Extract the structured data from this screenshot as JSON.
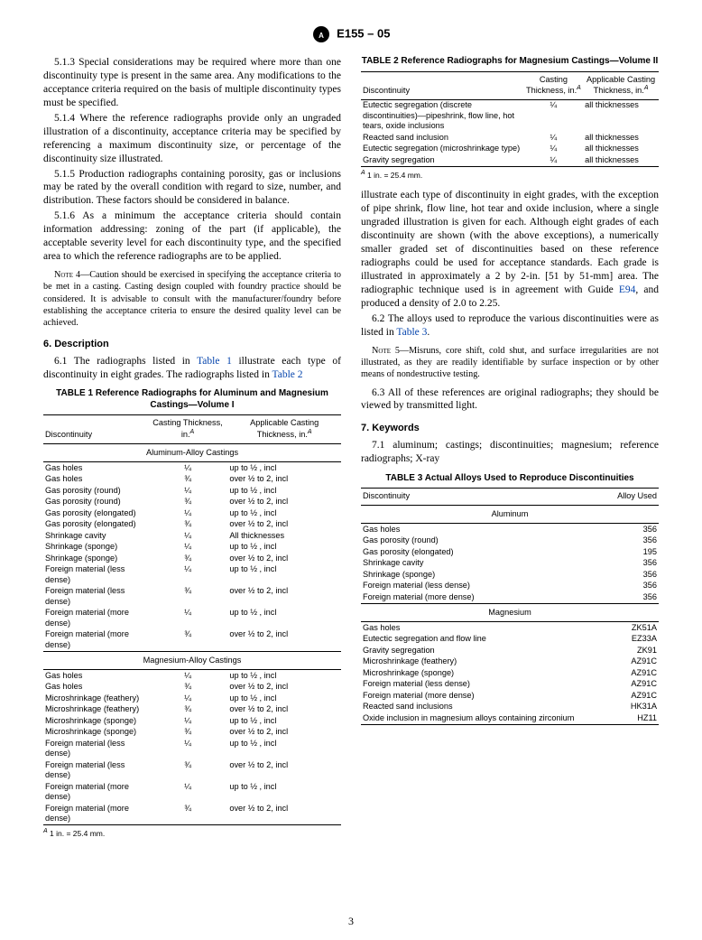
{
  "header": {
    "designation": "E155 – 05"
  },
  "left": {
    "p1": "5.1.3 Special considerations may be required where more than one discontinuity type is present in the same area. Any modifications to the acceptance criteria required on the basis of multiple discontinuity types must be specified.",
    "p2": "5.1.4 Where the reference radiographs provide only an ungraded illustration of a discontinuity, acceptance criteria may be specified by referencing a maximum discontinuity size, or percentage of the discontinuity size illustrated.",
    "p3": "5.1.5 Production radiographs containing porosity, gas or inclusions may be rated by the overall condition with regard to size, number, and distribution. These factors should be considered in balance.",
    "p4": "5.1.6 As a minimum the acceptance criteria should contain information addressing: zoning of the part (if applicable), the acceptable severity level for each discontinuity type, and the specified area to which the reference radiographs are to be applied.",
    "note4": "4—Caution should be exercised in specifying the acceptance criteria to be met in a casting. Casting design coupled with foundry practice should be considered. It is advisable to consult with the manufacturer/foundry before establishing the acceptance criteria to ensure the desired quality level can be achieved.",
    "section6": "6. Description",
    "p6_1a": "6.1 The radiographs listed in ",
    "p6_1_link1": "Table 1",
    "p6_1b": " illustrate each type of discontinuity in eight grades. The radiographs listed in ",
    "p6_1_link2": "Table 2"
  },
  "table1": {
    "title": "TABLE 1  Reference Radiographs for Aluminum and Magnesium Castings—Volume I",
    "headers": [
      "Discontinuity",
      "Casting Thickness, in.",
      "Applicable Casting Thickness, in."
    ],
    "sup": "A",
    "sub1": "Aluminum-Alloy Castings",
    "rows_al": [
      [
        "Gas holes",
        "¼",
        "up to ½ , incl"
      ],
      [
        "Gas holes",
        "¾",
        "over ½ to 2, incl"
      ],
      [
        "Gas porosity (round)",
        "¼",
        "up to ½ , incl"
      ],
      [
        "Gas porosity (round)",
        "¾",
        "over ½ to 2, incl"
      ],
      [
        "Gas porosity (elongated)",
        "¼",
        "up to ½ , incl"
      ],
      [
        "Gas porosity (elongated)",
        "¾",
        "over ½ to 2, incl"
      ],
      [
        "Shrinkage cavity",
        "¼",
        "All thicknesses"
      ],
      [
        "Shrinkage (sponge)",
        "¼",
        "up to ½ , incl"
      ],
      [
        "Shrinkage (sponge)",
        "¾",
        "over ½ to 2, incl"
      ],
      [
        "Foreign material (less dense)",
        "¼",
        "up to ½ , incl"
      ],
      [
        "Foreign material (less dense)",
        "¾",
        "over ½ to 2, incl"
      ],
      [
        "Foreign material (more dense)",
        "¼",
        "up to ½ , incl"
      ],
      [
        "Foreign material (more dense)",
        "¾",
        "over ½ to 2, incl"
      ]
    ],
    "sub2": "Magnesium-Alloy Castings",
    "rows_mg": [
      [
        "Gas holes",
        "¼",
        "up to ½ , incl"
      ],
      [
        "Gas holes",
        "¾",
        "over ½ to 2, incl"
      ],
      [
        "Microshrinkage (feathery)",
        "¼",
        "up to ½ , incl"
      ],
      [
        "Microshrinkage (feathery)",
        "¾",
        "over ½ to 2, incl"
      ],
      [
        "Microshrinkage (sponge)",
        "¼",
        "up to ½ , incl"
      ],
      [
        "Microshrinkage (sponge)",
        "¾",
        "over ½ to 2, incl"
      ],
      [
        "Foreign material (less dense)",
        "¼",
        "up to ½ , incl"
      ],
      [
        "Foreign material (less dense)",
        "¾",
        "over ½ to 2, incl"
      ],
      [
        "Foreign material (more dense)",
        "¼",
        "up to ½ , incl"
      ],
      [
        "Foreign material (more dense)",
        "¾",
        "over ½ to 2, incl"
      ]
    ],
    "footnote": "1 in. = 25.4 mm."
  },
  "table2": {
    "title": "TABLE 2  Reference Radiographs for Magnesium Castings—Volume II",
    "headers": [
      "Discontinuity",
      "Casting Thickness, in.",
      "Applicable Casting Thickness, in."
    ],
    "sup": "A",
    "rows": [
      [
        "Eutectic segregation (discrete discontinuities)—pipeshrink, flow line, hot tears, oxide inclusions",
        "¼",
        "all thicknesses"
      ],
      [
        "Reacted sand inclusion",
        "¼",
        "all thicknesses"
      ],
      [
        "Eutectic segregation (microshrinkage type)",
        "¼",
        "all thicknesses"
      ],
      [
        "Gravity segregation",
        "¼",
        "all thicknesses"
      ]
    ],
    "footnote": "1 in. = 25.4 mm."
  },
  "right": {
    "p1a": "illustrate each type of discontinuity in eight grades, with the exception of pipe shrink, flow line, hot tear and oxide inclusion, where a single ungraded illustration is given for each. Although eight grades of each discontinuity are shown (with the above exceptions), a numerically smaller graded set of discontinuities based on these reference radiographs could be used for acceptance standards. Each grade is illustrated in approximately a 2 by 2-in. [51 by 51-mm] area. The radiographic technique used is in agreement with Guide ",
    "p1_link": "E94",
    "p1b": ", and produced a density of 2.0 to 2.25.",
    "p2a": "6.2 The alloys used to reproduce the various discontinuities were as listed in ",
    "p2_link": "Table 3",
    "p2b": ".",
    "note5": "5—Misruns, core shift, cold shut, and surface irregularities are not illustrated, as they are readily identifiable by surface inspection or by other means of nondestructive testing.",
    "p3": "6.3 All of these references are original radiographs; they should be viewed by transmitted light.",
    "section7": "7. Keywords",
    "p7_1": "7.1 aluminum; castings; discontinuities; magnesium; reference radiographs; X-ray"
  },
  "table3": {
    "title": "TABLE 3  Actual Alloys Used to Reproduce Discontinuities",
    "headers": [
      "Discontinuity",
      "Alloy Used"
    ],
    "sub1": "Aluminum",
    "rows_al": [
      [
        "Gas holes",
        "356"
      ],
      [
        "Gas porosity (round)",
        "356"
      ],
      [
        "Gas porosity (elongated)",
        "195"
      ],
      [
        "Shrinkage cavity",
        "356"
      ],
      [
        "Shrinkage (sponge)",
        "356"
      ],
      [
        "Foreign material (less dense)",
        "356"
      ],
      [
        "Foreign material (more dense)",
        "356"
      ]
    ],
    "sub2": "Magnesium",
    "rows_mg": [
      [
        "Gas holes",
        "ZK51A"
      ],
      [
        "Eutectic segregation and flow line",
        "EZ33A"
      ],
      [
        "Gravity segregation",
        "ZK91"
      ],
      [
        "Microshrinkage (feathery)",
        "AZ91C"
      ],
      [
        "Microshrinkage (sponge)",
        "AZ91C"
      ],
      [
        "Foreign material (less dense)",
        "AZ91C"
      ],
      [
        "Foreign material (more dense)",
        "AZ91C"
      ],
      [
        "Reacted sand inclusions",
        "HK31A"
      ],
      [
        "Oxide inclusion in magnesium alloys containing zirconium",
        "HZ11"
      ]
    ]
  },
  "pagenum": "3",
  "style": {
    "link_color": "#0645ad",
    "body_fontsize": 11.5,
    "table_fontsize": 9.2,
    "note_fontsize": 10.2
  }
}
